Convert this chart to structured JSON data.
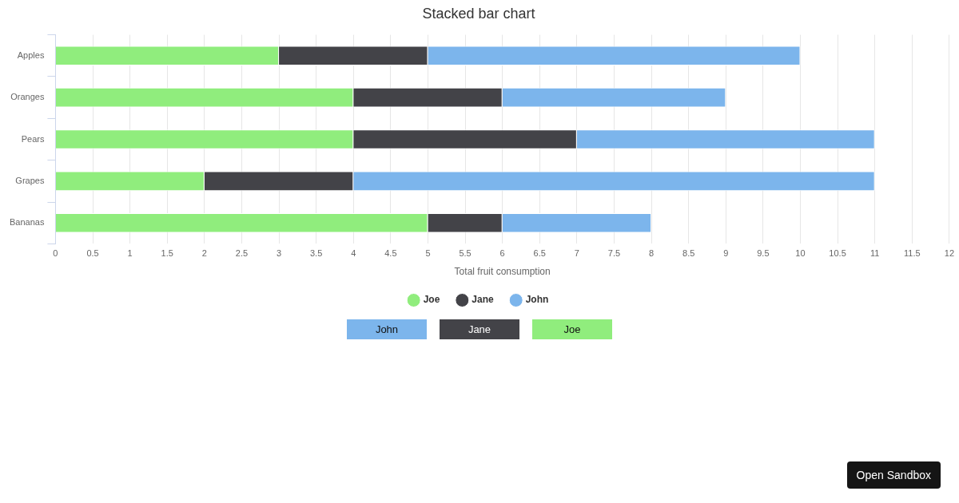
{
  "chart_data": {
    "type": "bar",
    "orientation": "horizontal",
    "stacked": true,
    "title": "Stacked bar chart",
    "xlabel": "Total fruit consumption",
    "categories": [
      "Apples",
      "Oranges",
      "Pears",
      "Grapes",
      "Bananas"
    ],
    "series": [
      {
        "name": "Joe",
        "color": "#90ed7d",
        "values": [
          3,
          4,
          4,
          2,
          5
        ]
      },
      {
        "name": "Jane",
        "color": "#434348",
        "values": [
          2,
          2,
          3,
          2,
          1
        ]
      },
      {
        "name": "John",
        "color": "#7cb5ec",
        "values": [
          5,
          3,
          4,
          7,
          2
        ]
      }
    ],
    "xlim": [
      0,
      12
    ],
    "xticks": [
      0,
      0.5,
      1,
      1.5,
      2,
      2.5,
      3,
      3.5,
      4,
      4.5,
      5,
      5.5,
      6,
      6.5,
      7,
      7.5,
      8,
      8.5,
      9,
      9.5,
      10,
      10.5,
      11,
      11.5,
      12
    ],
    "grid": "x",
    "legend": "bottom",
    "annotations": [
      "Open Sandbox"
    ]
  }
}
